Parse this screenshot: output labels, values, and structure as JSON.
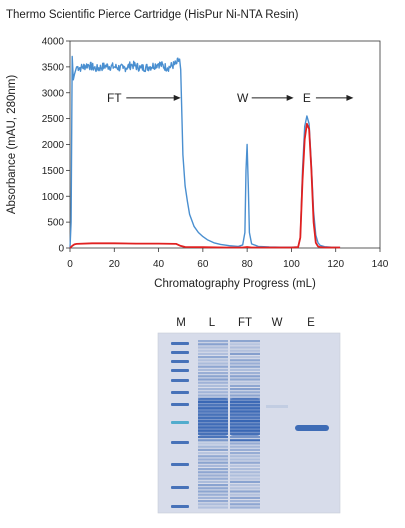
{
  "title": "Thermo Scientific Pierce Cartridge (HisPur Ni-NTA Resin)",
  "chart_data": {
    "type": "line",
    "title": "Thermo Scientific Pierce Cartridge (HisPur Ni-NTA Resin)",
    "xlabel": "Chromatography Progress (mL)",
    "ylabel": "Absorbance (mAU, 280nm)",
    "xlim": [
      0,
      140
    ],
    "ylim": [
      0,
      4000
    ],
    "x_ticks": [
      0,
      20,
      40,
      60,
      80,
      100,
      120,
      140
    ],
    "y_ticks": [
      0,
      500,
      1000,
      1500,
      2000,
      2500,
      3000,
      3500,
      4000
    ],
    "grid": false,
    "colors": {
      "blue": "#4a8fd0",
      "red": "#e02020"
    },
    "series": [
      {
        "color": "#4a8fd0",
        "x": [
          0,
          0.5,
          1,
          1.5,
          2,
          3,
          5,
          8,
          12,
          16,
          20,
          24,
          28,
          32,
          36,
          40,
          44,
          48,
          49.5,
          50,
          51,
          52,
          53,
          54,
          56,
          58,
          60,
          62,
          65,
          68,
          72,
          76,
          78,
          79,
          79.5,
          80,
          80.5,
          81,
          82,
          85,
          90,
          95,
          100,
          103,
          104,
          105,
          106,
          107,
          108,
          109,
          110,
          111,
          112,
          113,
          115,
          118,
          122
        ],
        "y": [
          0,
          500,
          3700,
          3250,
          3350,
          3500,
          3480,
          3540,
          3460,
          3520,
          3500,
          3470,
          3540,
          3480,
          3500,
          3560,
          3480,
          3560,
          3650,
          3450,
          1800,
          1200,
          900,
          650,
          420,
          300,
          220,
          160,
          100,
          70,
          45,
          30,
          60,
          300,
          1500,
          2000,
          1200,
          300,
          80,
          30,
          20,
          15,
          15,
          20,
          200,
          1500,
          2350,
          2550,
          2400,
          1600,
          700,
          250,
          100,
          50,
          25,
          15,
          10
        ]
      },
      {
        "color": "#e02020",
        "x": [
          0,
          1,
          2,
          3,
          10,
          20,
          30,
          40,
          48,
          50,
          52,
          60,
          70,
          78,
          80,
          82,
          90,
          100,
          103,
          104,
          105,
          106,
          107,
          108,
          109,
          110,
          111,
          112,
          113,
          115,
          118,
          122
        ],
        "y": [
          0,
          40,
          70,
          80,
          90,
          90,
          85,
          85,
          80,
          40,
          20,
          15,
          10,
          10,
          20,
          10,
          10,
          10,
          15,
          200,
          1300,
          2100,
          2400,
          2300,
          1500,
          500,
          100,
          30,
          15,
          10,
          10,
          10
        ]
      }
    ],
    "annotations": [
      {
        "label": "FT",
        "x": 20,
        "y": 2900,
        "arrow_to_x": 50
      },
      {
        "label": "W",
        "x": 78,
        "y": 2900,
        "arrow_to_x": 101
      },
      {
        "label": "E",
        "x": 107,
        "y": 2900,
        "arrow_to_x": 128
      }
    ]
  },
  "gel": {
    "lanes": [
      "M",
      "L",
      "FT",
      "W",
      "E"
    ],
    "background": "#d7dcea",
    "band_color": "#2e5fb0"
  }
}
